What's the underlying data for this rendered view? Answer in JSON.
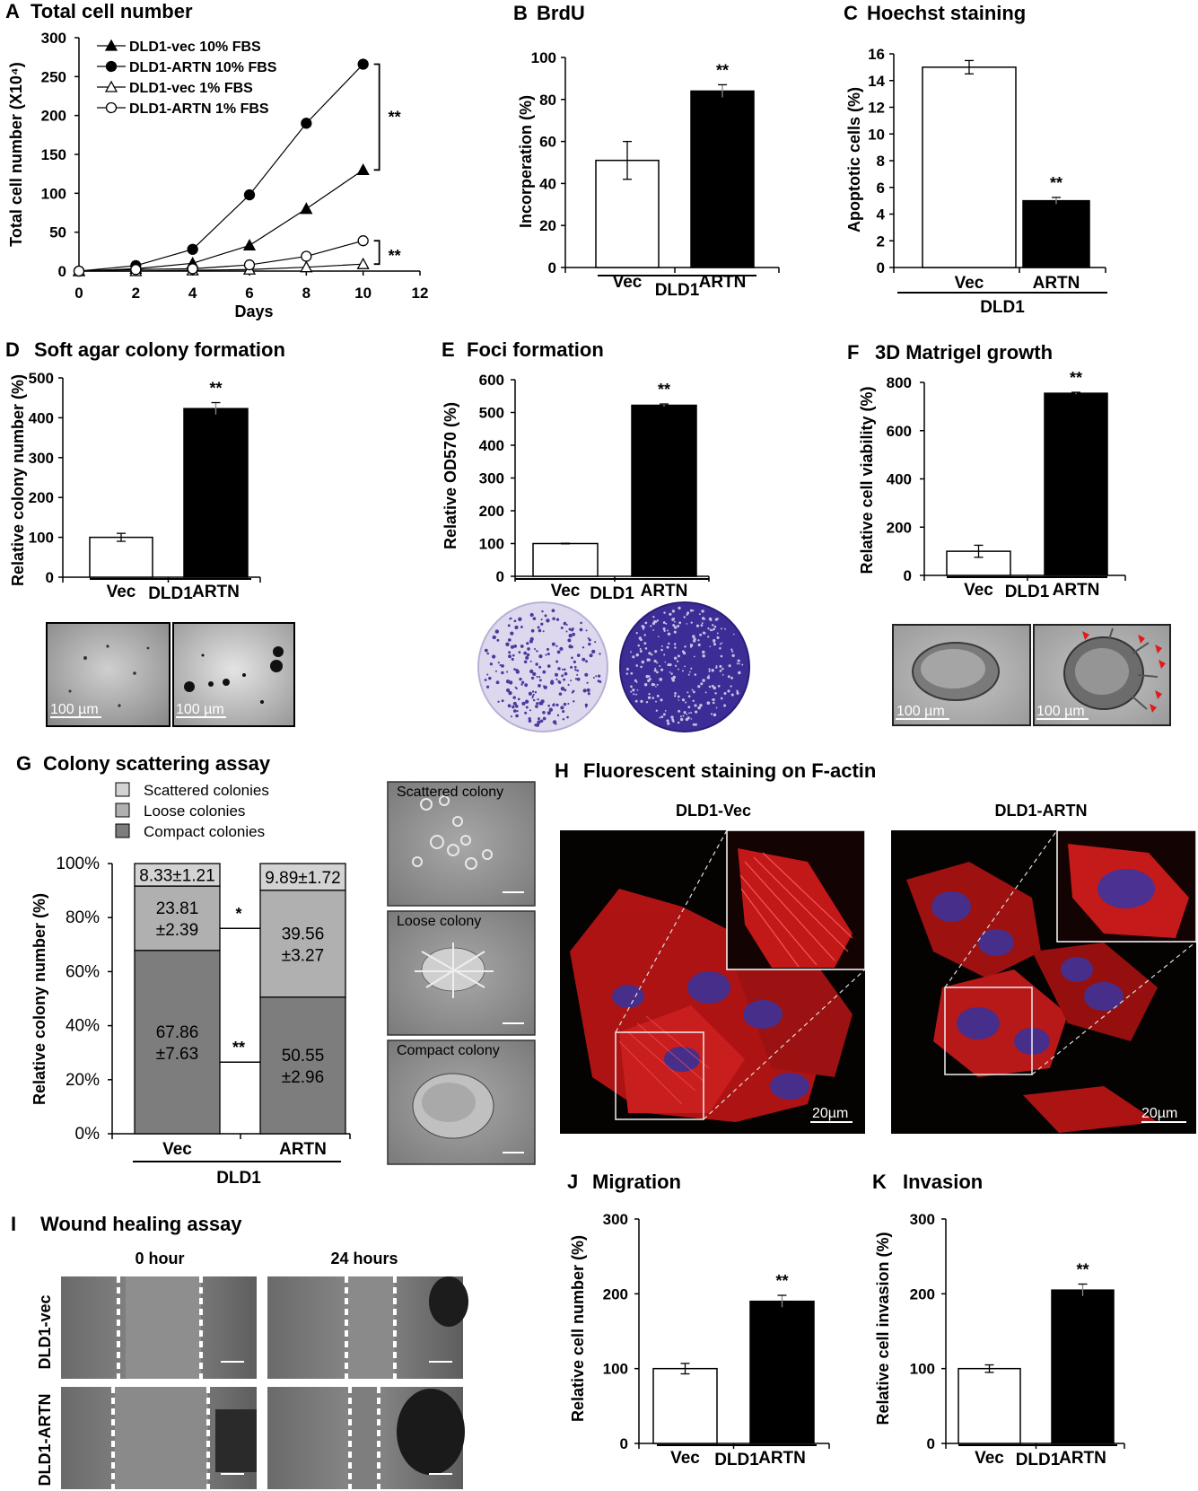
{
  "colors": {
    "white_bar": "#ffffff",
    "black_bar": "#000000",
    "scattered": "#d3d3d3",
    "loose": "#b0b0b0",
    "compact": "#7d7d7d",
    "fluor_red": "#d81e1e",
    "nuclei_blue": "#5a3aa8"
  },
  "panels": {
    "A": {
      "letter": "A",
      "title": "Total cell number"
    },
    "B": {
      "letter": "B",
      "title": "BrdU"
    },
    "C": {
      "letter": "C",
      "title": "Hoechst staining"
    },
    "D": {
      "letter": "D",
      "title": "Soft agar colony formation",
      "scale_left": "100 µm",
      "scale_right": "100 µm"
    },
    "E": {
      "letter": "E",
      "title": "Foci formation"
    },
    "F": {
      "letter": "F",
      "title": "3D Matrigel growth",
      "scale_left": "100 µm",
      "scale_right": "100 µm"
    },
    "G": {
      "letter": "G",
      "title": "Colony scattering assay",
      "photo_labels": [
        "Scattered colony",
        "Loose colony",
        "Compact colony"
      ]
    },
    "H": {
      "letter": "H",
      "title": "Fluorescent staining on F-actin",
      "left_label": "DLD1-Vec",
      "right_label": "DLD1-ARTN",
      "scale_left": "20µm",
      "scale_right": "20µm"
    },
    "I": {
      "letter": "I",
      "title": "Wound healing assay",
      "col_labels": [
        "0 hour",
        "24 hours"
      ],
      "row_labels": [
        "DLD1-vec",
        "DLD1-ARTN"
      ]
    },
    "J": {
      "letter": "J",
      "title": "Migration"
    },
    "K": {
      "letter": "K",
      "title": "Invasion"
    }
  },
  "chart_data": [
    {
      "id": "A",
      "type": "line",
      "xlabel": "Days",
      "ylabel": "Total cell number (X10⁴)",
      "xlim": [
        0,
        12
      ],
      "ylim": [
        0,
        300
      ],
      "xticks": [
        0,
        2,
        4,
        6,
        8,
        10,
        12
      ],
      "yticks": [
        0,
        50,
        100,
        150,
        200,
        250,
        300
      ],
      "x": [
        0,
        2,
        4,
        6,
        8,
        10
      ],
      "series": [
        {
          "name": "DLD1-vec 10% FBS",
          "marker": "filled-triangle",
          "values": [
            0,
            3,
            10,
            33,
            80,
            130
          ]
        },
        {
          "name": "DLD1-ARTN 10% FBS",
          "marker": "filled-circle",
          "values": [
            0,
            7,
            28,
            98,
            190,
            266
          ]
        },
        {
          "name": "DLD1-vec 1% FBS",
          "marker": "open-triangle",
          "values": [
            0,
            0,
            1,
            2,
            5,
            9
          ]
        },
        {
          "name": "DLD1-ARTN 1% FBS",
          "marker": "open-circle",
          "values": [
            0,
            2,
            3,
            8,
            19,
            39
          ]
        }
      ],
      "legend": "top-left",
      "significance": [
        "**",
        "**"
      ]
    },
    {
      "id": "B",
      "type": "bar",
      "categories": [
        "Vec",
        "ARTN"
      ],
      "values": [
        51,
        84
      ],
      "errors": [
        9,
        3
      ],
      "ylabel": "Incorperation (%)",
      "ylim": [
        0,
        100
      ],
      "yticks": [
        0,
        20,
        40,
        60,
        80,
        100
      ],
      "group": "DLD1",
      "significance": "**"
    },
    {
      "id": "C",
      "type": "bar",
      "categories": [
        "Vec",
        "ARTN"
      ],
      "values": [
        15,
        5
      ],
      "errors": [
        0.5,
        0.25
      ],
      "ylabel": "Apoptotic cells (%)",
      "ylim": [
        0,
        16
      ],
      "yticks": [
        0,
        2,
        4,
        6,
        8,
        10,
        12,
        14,
        16
      ],
      "group": "DLD1",
      "significance": "**"
    },
    {
      "id": "D",
      "type": "bar",
      "categories": [
        "Vec",
        "ARTN"
      ],
      "values": [
        100,
        423
      ],
      "errors": [
        10,
        15
      ],
      "ylabel": "Relative colony number (%)",
      "ylim": [
        0,
        500
      ],
      "yticks": [
        0,
        100,
        200,
        300,
        400,
        500
      ],
      "group": "DLD1",
      "significance": "**"
    },
    {
      "id": "E",
      "type": "bar",
      "categories": [
        "Vec",
        "ARTN"
      ],
      "values": [
        100,
        522
      ],
      "errors": [
        1,
        4
      ],
      "ylabel": "Relative OD570 (%)",
      "ylim": [
        0,
        600
      ],
      "yticks": [
        0,
        100,
        200,
        300,
        400,
        500,
        600
      ],
      "group": "DLD1",
      "significance": "**"
    },
    {
      "id": "F",
      "type": "bar",
      "categories": [
        "Vec",
        "ARTN"
      ],
      "values": [
        100,
        755
      ],
      "errors": [
        25,
        4
      ],
      "ylabel": "Relative cell viability (%)",
      "ylim": [
        0,
        800
      ],
      "yticks": [
        0,
        200,
        400,
        600,
        800
      ],
      "group": "DLD1",
      "significance": "**"
    },
    {
      "id": "G",
      "type": "bar",
      "stacked": true,
      "categories": [
        "Vec",
        "ARTN"
      ],
      "series": [
        {
          "name": "Compact colonies",
          "values": [
            67.86,
            50.55
          ],
          "labels": [
            "67.86\n±7.63",
            "50.55\n±2.96"
          ]
        },
        {
          "name": "Loose colonies",
          "values": [
            23.81,
            39.56
          ],
          "labels": [
            "23.81\n±2.39",
            "39.56\n±3.27"
          ]
        },
        {
          "name": "Scattered colonies",
          "values": [
            8.33,
            9.89
          ],
          "labels": [
            "8.33±1.21",
            "9.89±1.72"
          ]
        }
      ],
      "ylabel": "Relative colony number (%)",
      "ylim": [
        0,
        100
      ],
      "yticks": [
        "0%",
        "20%",
        "40%",
        "60%",
        "80%",
        "100%"
      ],
      "group": "DLD1",
      "significance": [
        "*",
        "**"
      ],
      "legend": "top-left"
    },
    {
      "id": "J",
      "type": "bar",
      "categories": [
        "Vec",
        "ARTN"
      ],
      "values": [
        100,
        190
      ],
      "errors": [
        7,
        8
      ],
      "ylabel": "Relative cell number (%)",
      "ylim": [
        0,
        300
      ],
      "yticks": [
        0,
        100,
        200,
        300
      ],
      "group": "DLD1",
      "significance": "**"
    },
    {
      "id": "K",
      "type": "bar",
      "categories": [
        "Vec",
        "ARTN"
      ],
      "values": [
        100,
        205
      ],
      "errors": [
        5,
        8
      ],
      "ylabel": "Relative cell invasion (%)",
      "ylim": [
        0,
        300
      ],
      "yticks": [
        0,
        100,
        200,
        300
      ],
      "group": "DLD1",
      "significance": "**"
    }
  ]
}
